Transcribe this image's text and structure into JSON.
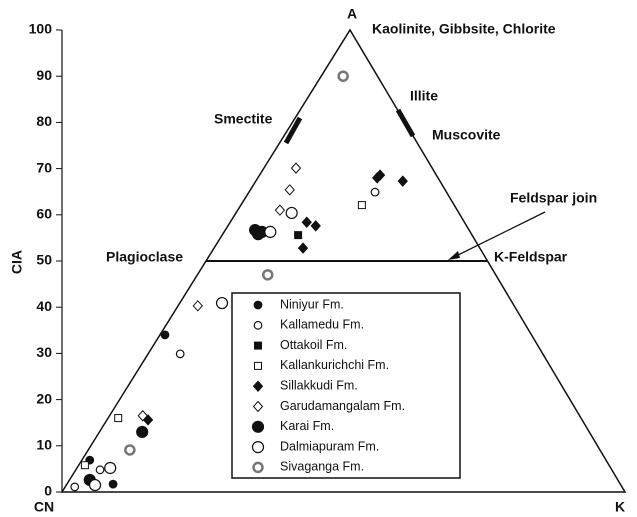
{
  "chart_data": {
    "type": "ternary",
    "y_label": "CIA",
    "ylim": [
      0,
      100
    ],
    "yticks": [
      0,
      10,
      20,
      30,
      40,
      50,
      60,
      70,
      80,
      90,
      100
    ],
    "apex_labels": {
      "top": "A",
      "left": "CN",
      "right": "K"
    },
    "annotations": {
      "top": "Kaolinite, Gibbsite, Chlorite",
      "smectite": "Smectite",
      "illite": "Illite",
      "muscovite": "Muscovite",
      "join": "Feldspar join",
      "plagioclase": "Plagioclase",
      "kfeldspar": "K-Feldspar"
    },
    "series": [
      {
        "name": "Niniyur Fm.",
        "marker": "circle",
        "color": "#111",
        "values": [
          1.7,
          34.0,
          6.9
        ],
        "k_values": [
          8.2,
          0.9,
          1.4
        ]
      },
      {
        "name": "Kallamedu Fm.",
        "marker": "open-circle",
        "color": "#111",
        "values": [
          29.9,
          64.9,
          1.1,
          4.8
        ],
        "k_values": [
          5.7,
          22.4,
          1.7,
          4.3
        ]
      },
      {
        "name": "Ottakoil Fm.",
        "marker": "square",
        "color": "#111",
        "values": [
          55.6
        ],
        "k_values": [
          13.5
        ]
      },
      {
        "name": "Kallankurichchi Fm.",
        "marker": "open-square",
        "color": "#111",
        "values": [
          62.1,
          16.0,
          5.8
        ],
        "k_values": [
          21.5,
          1.8,
          1.1
        ]
      },
      {
        "name": "Sillakkudi Fm.",
        "marker": "diamond",
        "color": "#111",
        "values": [
          68.0,
          68.6,
          67.3,
          58.4,
          57.6,
          52.8,
          15.6
        ],
        "k_values": [
          21.2,
          21.4,
          26.1,
          13.6,
          15.6,
          15.8,
          7.3
        ]
      },
      {
        "name": "Garudamangalam Fm.",
        "marker": "open-diamond",
        "color": "#111",
        "values": [
          70.1,
          65.4,
          61.0,
          40.3,
          16.5
        ],
        "k_values": [
          5.7,
          7.0,
          7.5,
          3.5,
          5.9
        ]
      },
      {
        "name": "Karai Fm.",
        "marker": "big-circle",
        "color": "#111",
        "values": [
          56.7,
          56.3,
          55.8,
          13.0,
          2.6
        ],
        "k_values": [
          5.3,
          6.7,
          6.3,
          7.6,
          3.6
        ]
      },
      {
        "name": "Dalmiapuram Fm.",
        "marker": "big-open-circle",
        "color": "#111",
        "values": [
          56.3,
          60.4,
          40.9,
          5.2,
          1.5
        ],
        "k_values": [
          8.2,
          9.9,
          7.5,
          5.9,
          5.1
        ]
      },
      {
        "name": "Sivaganga Fm.",
        "marker": "gray-circle",
        "color": "#777",
        "values": [
          90.0,
          47.0,
          9.1
        ],
        "k_values": [
          3.9,
          12.5,
          7.4
        ]
      }
    ]
  }
}
